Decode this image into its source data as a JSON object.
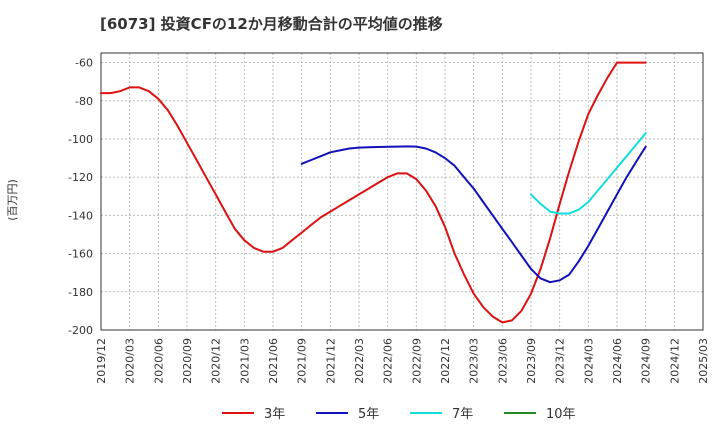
{
  "chart_data": {
    "type": "line",
    "title": "[6073]  投資CFの12か月移動合計の平均値の推移",
    "ylabel": "(百万円)",
    "xlabel": "",
    "ylim": [
      -200,
      -55
    ],
    "yticks": [
      -60,
      -80,
      -100,
      -120,
      -140,
      -160,
      -180,
      -200
    ],
    "x_tick_labels": [
      "2019/12",
      "2020/03",
      "2020/06",
      "2020/09",
      "2020/12",
      "2021/03",
      "2021/06",
      "2021/09",
      "2021/12",
      "2022/03",
      "2022/06",
      "2022/09",
      "2022/12",
      "2023/03",
      "2023/06",
      "2023/09",
      "2023/12",
      "2024/03",
      "2024/06",
      "2024/09",
      "2024/12",
      "2025/03"
    ],
    "grid": true,
    "legend_position": "bottom",
    "series": [
      {
        "name": "3年",
        "color": "#dd1111",
        "x": [
          "2019/12",
          "2020/01",
          "2020/02",
          "2020/03",
          "2020/04",
          "2020/05",
          "2020/06",
          "2020/07",
          "2020/08",
          "2020/09",
          "2020/10",
          "2020/11",
          "2020/12",
          "2021/01",
          "2021/02",
          "2021/03",
          "2021/04",
          "2021/05",
          "2021/06",
          "2021/07",
          "2021/08",
          "2021/09",
          "2021/10",
          "2021/11",
          "2021/12",
          "2022/01",
          "2022/02",
          "2022/03",
          "2022/04",
          "2022/05",
          "2022/06",
          "2022/07",
          "2022/08",
          "2022/09",
          "2022/10",
          "2022/11",
          "2022/12",
          "2023/01",
          "2023/02",
          "2023/03",
          "2023/04",
          "2023/05",
          "2023/06",
          "2023/07",
          "2023/08",
          "2023/09",
          "2023/10",
          "2023/11",
          "2023/12",
          "2024/01",
          "2024/02",
          "2024/03",
          "2024/04",
          "2024/05",
          "2024/06",
          "2024/07",
          "2024/08",
          "2024/09"
        ],
        "values": [
          -76,
          -76,
          -75,
          -73,
          -73,
          -75,
          -79,
          -85,
          -93,
          -102,
          -111,
          -120,
          -129,
          -138,
          -147,
          -153,
          -157,
          -159,
          -159,
          -157,
          -153,
          -149,
          -145,
          -141,
          -138,
          -135,
          -132,
          -129,
          -126,
          -123,
          -120,
          -118,
          -118,
          -121,
          -127,
          -135,
          -146,
          -160,
          -171,
          -181,
          -188,
          -193,
          -196,
          -195,
          -190,
          -181,
          -168,
          -152,
          -134,
          -117,
          -101,
          -87,
          -77,
          -68,
          -60,
          -60,
          -60,
          -60
        ]
      },
      {
        "name": "5年",
        "color": "#1111bb",
        "x": [
          "2021/09",
          "2021/10",
          "2021/11",
          "2021/12",
          "2022/01",
          "2022/02",
          "2022/03",
          "2022/04",
          "2022/05",
          "2022/06",
          "2022/07",
          "2022/08",
          "2022/09",
          "2022/10",
          "2022/11",
          "2022/12",
          "2023/01",
          "2023/02",
          "2023/03",
          "2023/04",
          "2023/05",
          "2023/06",
          "2023/07",
          "2023/08",
          "2023/09",
          "2023/10",
          "2023/11",
          "2023/12",
          "2024/01",
          "2024/02",
          "2024/03",
          "2024/04",
          "2024/05",
          "2024/06",
          "2024/07",
          "2024/08",
          "2024/09"
        ],
        "values": [
          -113,
          -111,
          -109,
          -107,
          -106,
          -105,
          -104.5,
          -104.3,
          -104.2,
          -104.1,
          -104,
          -103.9,
          -104,
          -105,
          -107,
          -110,
          -114,
          -120,
          -126,
          -133,
          -140,
          -147,
          -154,
          -161,
          -168,
          -173,
          -175,
          -174,
          -171,
          -164,
          -156,
          -147,
          -138,
          -129,
          -120,
          -112,
          -104
        ]
      },
      {
        "name": "7年",
        "color": "#11dddd",
        "x": [
          "2023/09",
          "2023/10",
          "2023/11",
          "2023/12",
          "2024/01",
          "2024/02",
          "2024/03",
          "2024/04",
          "2024/05",
          "2024/06",
          "2024/07",
          "2024/08",
          "2024/09"
        ],
        "values": [
          -129,
          -134,
          -138,
          -139,
          -139,
          -137,
          -133,
          -127,
          -121,
          -115,
          -109,
          -103,
          -97
        ]
      },
      {
        "name": "10年",
        "color": "#228822",
        "x": [],
        "values": []
      }
    ]
  }
}
